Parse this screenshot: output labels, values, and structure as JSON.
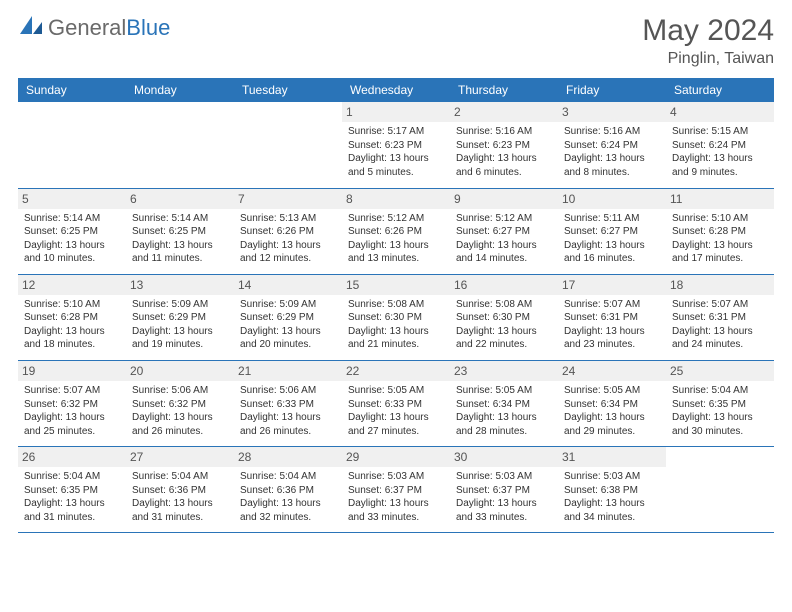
{
  "logo": {
    "word1": "General",
    "word2": "Blue"
  },
  "title": "May 2024",
  "location": "Pinglin, Taiwan",
  "header_color": "#2a74b8",
  "day_headers": [
    "Sunday",
    "Monday",
    "Tuesday",
    "Wednesday",
    "Thursday",
    "Friday",
    "Saturday"
  ],
  "weeks": [
    [
      {
        "empty": true
      },
      {
        "empty": true
      },
      {
        "empty": true
      },
      {
        "day": "1",
        "sunrise": "Sunrise: 5:17 AM",
        "sunset": "Sunset: 6:23 PM",
        "daylight": "Daylight: 13 hours and 5 minutes."
      },
      {
        "day": "2",
        "sunrise": "Sunrise: 5:16 AM",
        "sunset": "Sunset: 6:23 PM",
        "daylight": "Daylight: 13 hours and 6 minutes."
      },
      {
        "day": "3",
        "sunrise": "Sunrise: 5:16 AM",
        "sunset": "Sunset: 6:24 PM",
        "daylight": "Daylight: 13 hours and 8 minutes."
      },
      {
        "day": "4",
        "sunrise": "Sunrise: 5:15 AM",
        "sunset": "Sunset: 6:24 PM",
        "daylight": "Daylight: 13 hours and 9 minutes."
      }
    ],
    [
      {
        "day": "5",
        "sunrise": "Sunrise: 5:14 AM",
        "sunset": "Sunset: 6:25 PM",
        "daylight": "Daylight: 13 hours and 10 minutes."
      },
      {
        "day": "6",
        "sunrise": "Sunrise: 5:14 AM",
        "sunset": "Sunset: 6:25 PM",
        "daylight": "Daylight: 13 hours and 11 minutes."
      },
      {
        "day": "7",
        "sunrise": "Sunrise: 5:13 AM",
        "sunset": "Sunset: 6:26 PM",
        "daylight": "Daylight: 13 hours and 12 minutes."
      },
      {
        "day": "8",
        "sunrise": "Sunrise: 5:12 AM",
        "sunset": "Sunset: 6:26 PM",
        "daylight": "Daylight: 13 hours and 13 minutes."
      },
      {
        "day": "9",
        "sunrise": "Sunrise: 5:12 AM",
        "sunset": "Sunset: 6:27 PM",
        "daylight": "Daylight: 13 hours and 14 minutes."
      },
      {
        "day": "10",
        "sunrise": "Sunrise: 5:11 AM",
        "sunset": "Sunset: 6:27 PM",
        "daylight": "Daylight: 13 hours and 16 minutes."
      },
      {
        "day": "11",
        "sunrise": "Sunrise: 5:10 AM",
        "sunset": "Sunset: 6:28 PM",
        "daylight": "Daylight: 13 hours and 17 minutes."
      }
    ],
    [
      {
        "day": "12",
        "sunrise": "Sunrise: 5:10 AM",
        "sunset": "Sunset: 6:28 PM",
        "daylight": "Daylight: 13 hours and 18 minutes."
      },
      {
        "day": "13",
        "sunrise": "Sunrise: 5:09 AM",
        "sunset": "Sunset: 6:29 PM",
        "daylight": "Daylight: 13 hours and 19 minutes."
      },
      {
        "day": "14",
        "sunrise": "Sunrise: 5:09 AM",
        "sunset": "Sunset: 6:29 PM",
        "daylight": "Daylight: 13 hours and 20 minutes."
      },
      {
        "day": "15",
        "sunrise": "Sunrise: 5:08 AM",
        "sunset": "Sunset: 6:30 PM",
        "daylight": "Daylight: 13 hours and 21 minutes."
      },
      {
        "day": "16",
        "sunrise": "Sunrise: 5:08 AM",
        "sunset": "Sunset: 6:30 PM",
        "daylight": "Daylight: 13 hours and 22 minutes."
      },
      {
        "day": "17",
        "sunrise": "Sunrise: 5:07 AM",
        "sunset": "Sunset: 6:31 PM",
        "daylight": "Daylight: 13 hours and 23 minutes."
      },
      {
        "day": "18",
        "sunrise": "Sunrise: 5:07 AM",
        "sunset": "Sunset: 6:31 PM",
        "daylight": "Daylight: 13 hours and 24 minutes."
      }
    ],
    [
      {
        "day": "19",
        "sunrise": "Sunrise: 5:07 AM",
        "sunset": "Sunset: 6:32 PM",
        "daylight": "Daylight: 13 hours and 25 minutes."
      },
      {
        "day": "20",
        "sunrise": "Sunrise: 5:06 AM",
        "sunset": "Sunset: 6:32 PM",
        "daylight": "Daylight: 13 hours and 26 minutes."
      },
      {
        "day": "21",
        "sunrise": "Sunrise: 5:06 AM",
        "sunset": "Sunset: 6:33 PM",
        "daylight": "Daylight: 13 hours and 26 minutes."
      },
      {
        "day": "22",
        "sunrise": "Sunrise: 5:05 AM",
        "sunset": "Sunset: 6:33 PM",
        "daylight": "Daylight: 13 hours and 27 minutes."
      },
      {
        "day": "23",
        "sunrise": "Sunrise: 5:05 AM",
        "sunset": "Sunset: 6:34 PM",
        "daylight": "Daylight: 13 hours and 28 minutes."
      },
      {
        "day": "24",
        "sunrise": "Sunrise: 5:05 AM",
        "sunset": "Sunset: 6:34 PM",
        "daylight": "Daylight: 13 hours and 29 minutes."
      },
      {
        "day": "25",
        "sunrise": "Sunrise: 5:04 AM",
        "sunset": "Sunset: 6:35 PM",
        "daylight": "Daylight: 13 hours and 30 minutes."
      }
    ],
    [
      {
        "day": "26",
        "sunrise": "Sunrise: 5:04 AM",
        "sunset": "Sunset: 6:35 PM",
        "daylight": "Daylight: 13 hours and 31 minutes."
      },
      {
        "day": "27",
        "sunrise": "Sunrise: 5:04 AM",
        "sunset": "Sunset: 6:36 PM",
        "daylight": "Daylight: 13 hours and 31 minutes."
      },
      {
        "day": "28",
        "sunrise": "Sunrise: 5:04 AM",
        "sunset": "Sunset: 6:36 PM",
        "daylight": "Daylight: 13 hours and 32 minutes."
      },
      {
        "day": "29",
        "sunrise": "Sunrise: 5:03 AM",
        "sunset": "Sunset: 6:37 PM",
        "daylight": "Daylight: 13 hours and 33 minutes."
      },
      {
        "day": "30",
        "sunrise": "Sunrise: 5:03 AM",
        "sunset": "Sunset: 6:37 PM",
        "daylight": "Daylight: 13 hours and 33 minutes."
      },
      {
        "day": "31",
        "sunrise": "Sunrise: 5:03 AM",
        "sunset": "Sunset: 6:38 PM",
        "daylight": "Daylight: 13 hours and 34 minutes."
      },
      {
        "empty": true
      }
    ]
  ]
}
